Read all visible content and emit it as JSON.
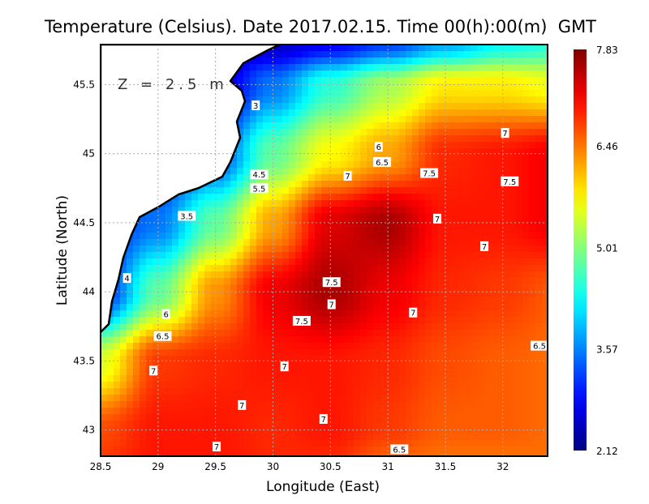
{
  "chart_data": {
    "type": "heatmap",
    "title": "Temperature (Celsius). Date 2017.02.15. Time 00(h):00(m)  GMT",
    "annotation": "Z = 2.5 m",
    "xlabel": "Longitude (East)",
    "ylabel": "Latitude (North)",
    "xlim": [
      28.5,
      32.39
    ],
    "ylim": [
      42.81,
      45.79
    ],
    "xticks": [
      "28.5",
      "29",
      "29.5",
      "30",
      "30.5",
      "31",
      "31.5",
      "32"
    ],
    "yticks": [
      "43",
      "43.5",
      "44",
      "44.5",
      "45",
      "45.5"
    ],
    "grid": true,
    "colormap": "jet",
    "colorbar": {
      "min": 2.12,
      "max": 7.83,
      "ticks": [
        "2.12",
        "3.57",
        "5.01",
        "6.46",
        "7.83"
      ],
      "placement": "right"
    },
    "grid_lons": [
      28.5,
      29,
      29.5,
      30,
      30.5,
      31,
      31.5,
      32,
      32.5
    ],
    "grid_lats": [
      45.8,
      45.5,
      45,
      44.5,
      44,
      43.5,
      43,
      42.8
    ],
    "values": [
      [
        2.5,
        2.5,
        2.5,
        2.5,
        2.8,
        3.2,
        3.8,
        4.3,
        4.5
      ],
      [
        2.5,
        2.5,
        2.5,
        3.5,
        4.5,
        5.2,
        5.8,
        5.8,
        5.6
      ],
      [
        2.8,
        2.8,
        3.2,
        4.8,
        5.7,
        6.2,
        6.9,
        7.0,
        7.2
      ],
      [
        3.0,
        3.5,
        4.8,
        6.2,
        7.3,
        7.6,
        7.0,
        7.0,
        7.2
      ],
      [
        3.0,
        4.8,
        6.3,
        7.2,
        7.6,
        7.2,
        6.9,
        6.8,
        6.6
      ],
      [
        5.5,
        6.8,
        6.9,
        7.0,
        7.0,
        6.9,
        6.7,
        6.6,
        6.5
      ],
      [
        6.7,
        7.0,
        7.0,
        6.9,
        7.0,
        6.8,
        6.6,
        6.6,
        6.5
      ],
      [
        6.8,
        7.0,
        7.0,
        6.9,
        6.9,
        6.6,
        6.5,
        6.5,
        6.5
      ]
    ],
    "contour_labels": [
      {
        "text": "3",
        "lon": 29.85,
        "lat": 45.35
      },
      {
        "text": "4.5",
        "lon": 29.88,
        "lat": 44.85
      },
      {
        "text": "5.5",
        "lon": 29.88,
        "lat": 44.75
      },
      {
        "text": "3.5",
        "lon": 29.25,
        "lat": 44.55
      },
      {
        "text": "4",
        "lon": 28.73,
        "lat": 44.1
      },
      {
        "text": "6",
        "lon": 29.07,
        "lat": 43.84
      },
      {
        "text": "6.5",
        "lon": 29.04,
        "lat": 43.68
      },
      {
        "text": "7",
        "lon": 28.96,
        "lat": 43.43
      },
      {
        "text": "6",
        "lon": 30.92,
        "lat": 45.05
      },
      {
        "text": "6.5",
        "lon": 30.95,
        "lat": 44.94
      },
      {
        "text": "7",
        "lon": 30.65,
        "lat": 44.84
      },
      {
        "text": "7.5",
        "lon": 31.36,
        "lat": 44.86
      },
      {
        "text": "7",
        "lon": 32.02,
        "lat": 45.15
      },
      {
        "text": "7.5",
        "lon": 32.06,
        "lat": 44.8
      },
      {
        "text": "7",
        "lon": 31.43,
        "lat": 44.53
      },
      {
        "text": "7",
        "lon": 31.84,
        "lat": 44.33
      },
      {
        "text": "7.5",
        "lon": 30.51,
        "lat": 44.07
      },
      {
        "text": "7",
        "lon": 30.51,
        "lat": 43.91
      },
      {
        "text": "7.5",
        "lon": 30.25,
        "lat": 43.79
      },
      {
        "text": "7",
        "lon": 31.22,
        "lat": 43.85
      },
      {
        "text": "7",
        "lon": 30.1,
        "lat": 43.46
      },
      {
        "text": "6.5",
        "lon": 32.32,
        "lat": 43.61
      },
      {
        "text": "7",
        "lon": 29.73,
        "lat": 43.18
      },
      {
        "text": "7",
        "lon": 30.44,
        "lat": 43.08
      },
      {
        "text": "7",
        "lon": 29.51,
        "lat": 42.88
      },
      {
        "text": "6.5",
        "lon": 31.1,
        "lat": 42.86
      }
    ]
  }
}
